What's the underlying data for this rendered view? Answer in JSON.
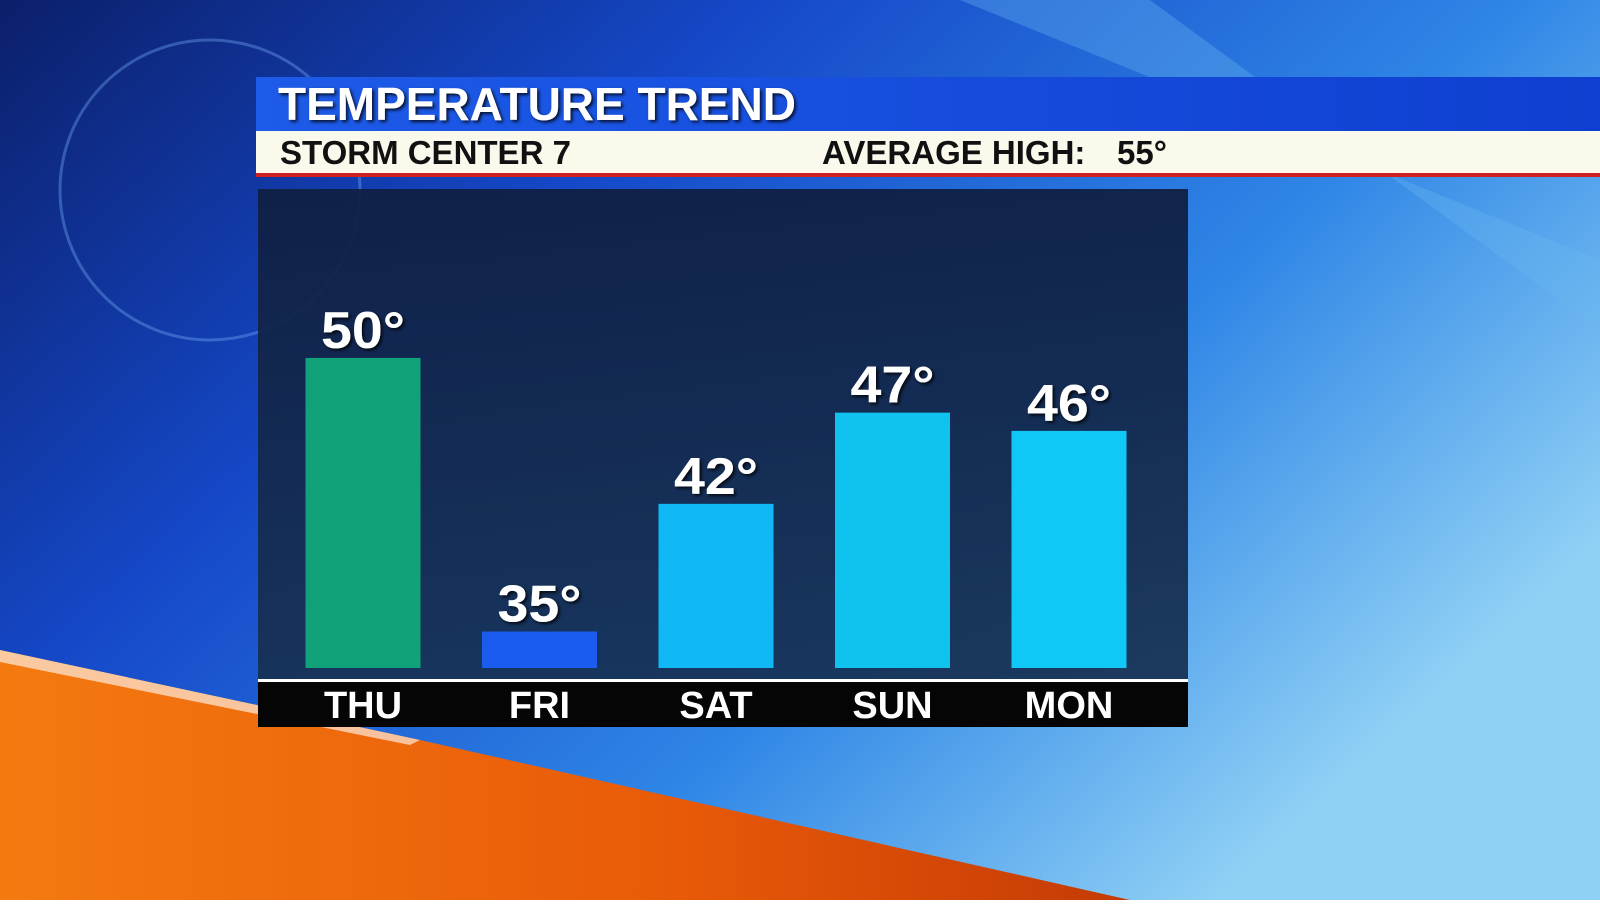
{
  "chart_data": {
    "type": "bar",
    "title": "TEMPERATURE TREND",
    "subtitle": "STORM CENTER 7",
    "average_high": {
      "label": "AVERAGE HIGH:",
      "value_label": "55°"
    },
    "categories": [
      "THU",
      "FRI",
      "SAT",
      "SUN",
      "MON"
    ],
    "values": [
      50,
      35,
      42,
      47,
      46
    ],
    "value_labels": [
      "50°",
      "35°",
      "42°",
      "47°",
      "46°"
    ],
    "colors": [
      "#11a27a",
      "#1a5cf0",
      "#10b8f6",
      "#10c2ee",
      "#10c8f6"
    ],
    "ylim": [
      33,
      58
    ]
  }
}
